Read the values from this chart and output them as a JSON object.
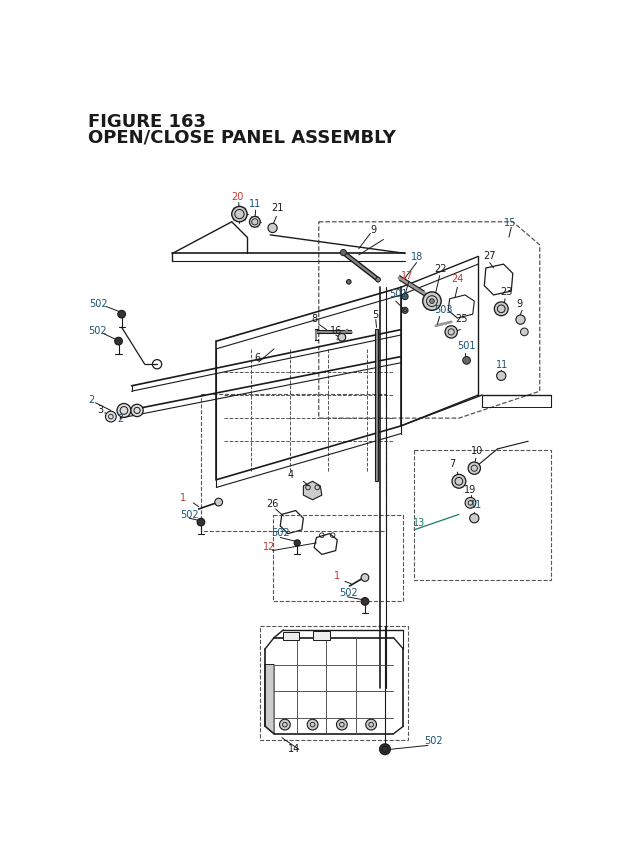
{
  "title_line1": "FIGURE 163",
  "title_line2": "OPEN/CLOSE PANEL ASSEMBLY",
  "bg_color": "#ffffff",
  "black": "#1a1a1a",
  "blue": "#1a5276",
  "orange": "#c0392b",
  "teal": "#1a7a5e",
  "gray": "#555555",
  "fig_width": 6.4,
  "fig_height": 8.62,
  "dpi": 100
}
